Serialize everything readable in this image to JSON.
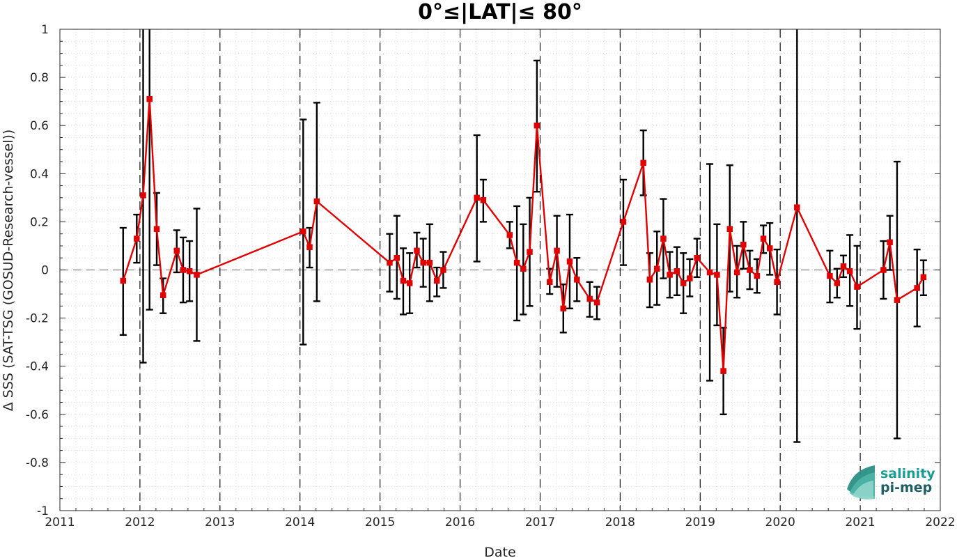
{
  "chart_data": {
    "type": "line",
    "title": "0°≤|LAT|≤ 80°",
    "xlabel": "Date",
    "ylabel": "Δ SSS (SAT-TSG (GOSUD-Research-vessel))",
    "xlim": [
      2011,
      2022
    ],
    "ylim": [
      -1,
      1
    ],
    "x_ticks": [
      2011,
      2012,
      2013,
      2014,
      2015,
      2016,
      2017,
      2018,
      2019,
      2020,
      2021,
      2022
    ],
    "x_tick_labels": [
      "2011",
      "2012",
      "2013",
      "2014",
      "2015",
      "2016",
      "2017",
      "2018",
      "2019",
      "2020",
      "2021",
      "2022"
    ],
    "y_ticks": [
      -1,
      -0.8,
      -0.6,
      -0.4,
      -0.2,
      0,
      0.2,
      0.4,
      0.6,
      0.8,
      1
    ],
    "y_tick_labels": [
      "-1",
      "-0.8",
      "-0.6",
      "-0.4",
      "-0.2",
      "0",
      "0.2",
      "0.4",
      "0.6",
      "0.8",
      "1"
    ],
    "grid": "minor dotted",
    "year_boundaries": "dashed vertical lines at each year",
    "zero_line": "dashed horizontal line at 0",
    "colors": {
      "line": "#e00000",
      "marker_fill": "#e00000",
      "errorbar": "#000000",
      "zero_line": "#808080"
    },
    "series": [
      {
        "marker": "square",
        "points": [
          {
            "x": 2011.79,
            "y": -0.045,
            "lo": -0.27,
            "hi": 0.175
          },
          {
            "x": 2011.96,
            "y": 0.13,
            "lo": 0.03,
            "hi": 0.23
          },
          {
            "x": 2012.04,
            "y": 0.31,
            "lo": -0.385,
            "hi": 1.0
          },
          {
            "x": 2012.12,
            "y": 0.71,
            "lo": -0.165,
            "hi": 1.0
          },
          {
            "x": 2012.21,
            "y": 0.17,
            "lo": 0.02,
            "hi": 0.32
          },
          {
            "x": 2012.29,
            "y": -0.105,
            "lo": -0.18,
            "hi": -0.035
          },
          {
            "x": 2012.46,
            "y": 0.08,
            "lo": -0.01,
            "hi": 0.165
          },
          {
            "x": 2012.54,
            "y": 0.0,
            "lo": -0.135,
            "hi": 0.135
          },
          {
            "x": 2012.62,
            "y": -0.005,
            "lo": -0.13,
            "hi": 0.12
          },
          {
            "x": 2012.71,
            "y": -0.02,
            "lo": -0.295,
            "hi": 0.255
          },
          {
            "x": 2014.04,
            "y": 0.16,
            "lo": -0.31,
            "hi": 0.625
          },
          {
            "x": 2014.12,
            "y": 0.095,
            "lo": 0.01,
            "hi": 0.175
          },
          {
            "x": 2014.21,
            "y": 0.285,
            "lo": -0.13,
            "hi": 0.695
          },
          {
            "x": 2015.12,
            "y": 0.03,
            "lo": -0.09,
            "hi": 0.15
          },
          {
            "x": 2015.21,
            "y": 0.05,
            "lo": -0.12,
            "hi": 0.225
          },
          {
            "x": 2015.29,
            "y": -0.045,
            "lo": -0.185,
            "hi": 0.09
          },
          {
            "x": 2015.37,
            "y": -0.055,
            "lo": -0.18,
            "hi": 0.07
          },
          {
            "x": 2015.46,
            "y": 0.08,
            "lo": 0.01,
            "hi": 0.155
          },
          {
            "x": 2015.54,
            "y": 0.03,
            "lo": -0.07,
            "hi": 0.13
          },
          {
            "x": 2015.62,
            "y": 0.03,
            "lo": -0.13,
            "hi": 0.19
          },
          {
            "x": 2015.71,
            "y": -0.045,
            "lo": -0.11,
            "hi": 0.01
          },
          {
            "x": 2015.79,
            "y": 0.0,
            "lo": -0.075,
            "hi": 0.075
          },
          {
            "x": 2016.21,
            "y": 0.3,
            "lo": 0.035,
            "hi": 0.56
          },
          {
            "x": 2016.29,
            "y": 0.29,
            "lo": 0.2,
            "hi": 0.375
          },
          {
            "x": 2016.62,
            "y": 0.145,
            "lo": 0.09,
            "hi": 0.2
          },
          {
            "x": 2016.71,
            "y": 0.03,
            "lo": -0.21,
            "hi": 0.265
          },
          {
            "x": 2016.79,
            "y": 0.005,
            "lo": -0.185,
            "hi": 0.19
          },
          {
            "x": 2016.87,
            "y": 0.075,
            "lo": -0.15,
            "hi": 0.3
          },
          {
            "x": 2016.96,
            "y": 0.6,
            "lo": 0.325,
            "hi": 0.87
          },
          {
            "x": 2017.12,
            "y": -0.05,
            "lo": -0.1,
            "hi": 0.005
          },
          {
            "x": 2017.21,
            "y": 0.08,
            "lo": -0.07,
            "hi": 0.225
          },
          {
            "x": 2017.29,
            "y": -0.16,
            "lo": -0.26,
            "hi": -0.06
          },
          {
            "x": 2017.37,
            "y": 0.035,
            "lo": -0.16,
            "hi": 0.23
          },
          {
            "x": 2017.46,
            "y": -0.04,
            "lo": -0.13,
            "hi": 0.05
          },
          {
            "x": 2017.62,
            "y": -0.12,
            "lo": -0.195,
            "hi": -0.05
          },
          {
            "x": 2017.71,
            "y": -0.135,
            "lo": -0.205,
            "hi": -0.07
          },
          {
            "x": 2018.04,
            "y": 0.2,
            "lo": 0.02,
            "hi": 0.375
          },
          {
            "x": 2018.29,
            "y": 0.445,
            "lo": 0.31,
            "hi": 0.58
          },
          {
            "x": 2018.37,
            "y": -0.04,
            "lo": -0.155,
            "hi": 0.07
          },
          {
            "x": 2018.46,
            "y": 0.005,
            "lo": -0.145,
            "hi": 0.16
          },
          {
            "x": 2018.54,
            "y": 0.13,
            "lo": -0.035,
            "hi": 0.295
          },
          {
            "x": 2018.62,
            "y": -0.02,
            "lo": -0.115,
            "hi": 0.075
          },
          {
            "x": 2018.71,
            "y": -0.005,
            "lo": -0.105,
            "hi": 0.095
          },
          {
            "x": 2018.79,
            "y": -0.055,
            "lo": -0.18,
            "hi": 0.07
          },
          {
            "x": 2018.87,
            "y": -0.035,
            "lo": -0.11,
            "hi": 0.045
          },
          {
            "x": 2018.96,
            "y": 0.05,
            "lo": -0.03,
            "hi": 0.13
          },
          {
            "x": 2019.12,
            "y": -0.01,
            "lo": -0.46,
            "hi": 0.44
          },
          {
            "x": 2019.21,
            "y": -0.02,
            "lo": -0.23,
            "hi": 0.19
          },
          {
            "x": 2019.29,
            "y": -0.42,
            "lo": -0.6,
            "hi": -0.24
          },
          {
            "x": 2019.37,
            "y": 0.17,
            "lo": -0.09,
            "hi": 0.435
          },
          {
            "x": 2019.46,
            "y": -0.01,
            "lo": -0.115,
            "hi": 0.1
          },
          {
            "x": 2019.54,
            "y": 0.105,
            "lo": 0.005,
            "hi": 0.2
          },
          {
            "x": 2019.62,
            "y": 0.0,
            "lo": -0.08,
            "hi": 0.08
          },
          {
            "x": 2019.71,
            "y": -0.025,
            "lo": -0.095,
            "hi": 0.045
          },
          {
            "x": 2019.79,
            "y": 0.13,
            "lo": 0.07,
            "hi": 0.185
          },
          {
            "x": 2019.87,
            "y": 0.09,
            "lo": -0.02,
            "hi": 0.195
          },
          {
            "x": 2019.96,
            "y": -0.05,
            "lo": -0.185,
            "hi": 0.085
          },
          {
            "x": 2020.21,
            "y": 0.26,
            "lo": -0.715,
            "hi": 1.0
          },
          {
            "x": 2020.62,
            "y": -0.025,
            "lo": -0.135,
            "hi": 0.08
          },
          {
            "x": 2020.71,
            "y": -0.055,
            "lo": -0.115,
            "hi": 0.005
          },
          {
            "x": 2020.79,
            "y": 0.015,
            "lo": -0.03,
            "hi": 0.06
          },
          {
            "x": 2020.87,
            "y": -0.005,
            "lo": -0.15,
            "hi": 0.145
          },
          {
            "x": 2020.96,
            "y": -0.07,
            "lo": -0.245,
            "hi": 0.1
          },
          {
            "x": 2021.29,
            "y": 0.0,
            "lo": -0.12,
            "hi": 0.12
          },
          {
            "x": 2021.37,
            "y": 0.115,
            "lo": 0.0,
            "hi": 0.225
          },
          {
            "x": 2021.46,
            "y": -0.125,
            "lo": -0.7,
            "hi": 0.45
          },
          {
            "x": 2021.71,
            "y": -0.075,
            "lo": -0.235,
            "hi": 0.085
          },
          {
            "x": 2021.79,
            "y": -0.03,
            "lo": -0.105,
            "hi": 0.04
          }
        ]
      }
    ]
  },
  "logo": {
    "line1": "salinity",
    "line2": "pi-mep",
    "colors": {
      "teal": "#1b9e91",
      "dark": "#1f5f63"
    }
  }
}
